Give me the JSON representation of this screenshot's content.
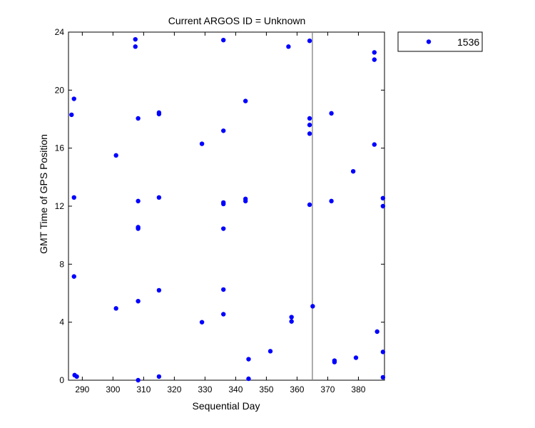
{
  "chart_data": {
    "type": "scatter",
    "title": "Current ARGOS ID = Unknown",
    "xlabel": "Sequential Day",
    "ylabel": "GMT Time of GPS Position",
    "xlim": [
      285.5,
      388.5
    ],
    "ylim": [
      0,
      24
    ],
    "xticks": [
      290,
      300,
      310,
      320,
      330,
      340,
      350,
      360,
      370,
      380
    ],
    "yticks": [
      0,
      4,
      8,
      12,
      16,
      20,
      24
    ],
    "grid": false,
    "legend_position": "outside-top-right",
    "vertical_line": {
      "x": 365,
      "color": "#808080"
    },
    "series": [
      {
        "name": "1536",
        "color": "#0000ff",
        "marker": "circle",
        "points": [
          [
            286.5,
            18.3
          ],
          [
            287.3,
            19.4
          ],
          [
            287.3,
            12.6
          ],
          [
            287.3,
            7.15
          ],
          [
            287.5,
            0.35
          ],
          [
            288.2,
            0.25
          ],
          [
            301.0,
            15.5
          ],
          [
            301.0,
            4.95
          ],
          [
            307.3,
            23.5
          ],
          [
            307.3,
            23.0
          ],
          [
            308.2,
            18.05
          ],
          [
            308.2,
            12.35
          ],
          [
            308.2,
            10.55
          ],
          [
            308.2,
            10.45
          ],
          [
            308.2,
            5.45
          ],
          [
            308.2,
            0.0
          ],
          [
            315.0,
            18.45
          ],
          [
            315.0,
            18.35
          ],
          [
            315.0,
            12.6
          ],
          [
            315.0,
            6.2
          ],
          [
            315.0,
            0.25
          ],
          [
            329.0,
            16.3
          ],
          [
            329.0,
            4.0
          ],
          [
            336.0,
            23.45
          ],
          [
            336.0,
            17.2
          ],
          [
            336.0,
            12.25
          ],
          [
            336.0,
            12.15
          ],
          [
            336.0,
            10.45
          ],
          [
            336.0,
            6.25
          ],
          [
            336.0,
            4.55
          ],
          [
            343.2,
            19.25
          ],
          [
            343.2,
            12.5
          ],
          [
            343.2,
            12.35
          ],
          [
            344.2,
            1.45
          ],
          [
            344.2,
            0.1
          ],
          [
            351.3,
            2.0
          ],
          [
            357.2,
            23.0
          ],
          [
            358.2,
            4.35
          ],
          [
            358.2,
            4.05
          ],
          [
            364.1,
            23.4
          ],
          [
            364.1,
            18.05
          ],
          [
            364.1,
            17.6
          ],
          [
            364.1,
            17.0
          ],
          [
            364.1,
            12.1
          ],
          [
            365.1,
            5.1
          ],
          [
            371.2,
            18.4
          ],
          [
            371.2,
            12.35
          ],
          [
            372.2,
            1.35
          ],
          [
            372.2,
            1.25
          ],
          [
            378.3,
            14.4
          ],
          [
            379.2,
            1.55
          ],
          [
            385.2,
            22.6
          ],
          [
            385.2,
            22.1
          ],
          [
            385.2,
            16.25
          ],
          [
            386.1,
            3.35
          ],
          [
            388.0,
            12.55
          ],
          [
            388.0,
            12.0
          ],
          [
            388.0,
            1.95
          ],
          [
            388.0,
            0.2
          ]
        ]
      }
    ]
  }
}
